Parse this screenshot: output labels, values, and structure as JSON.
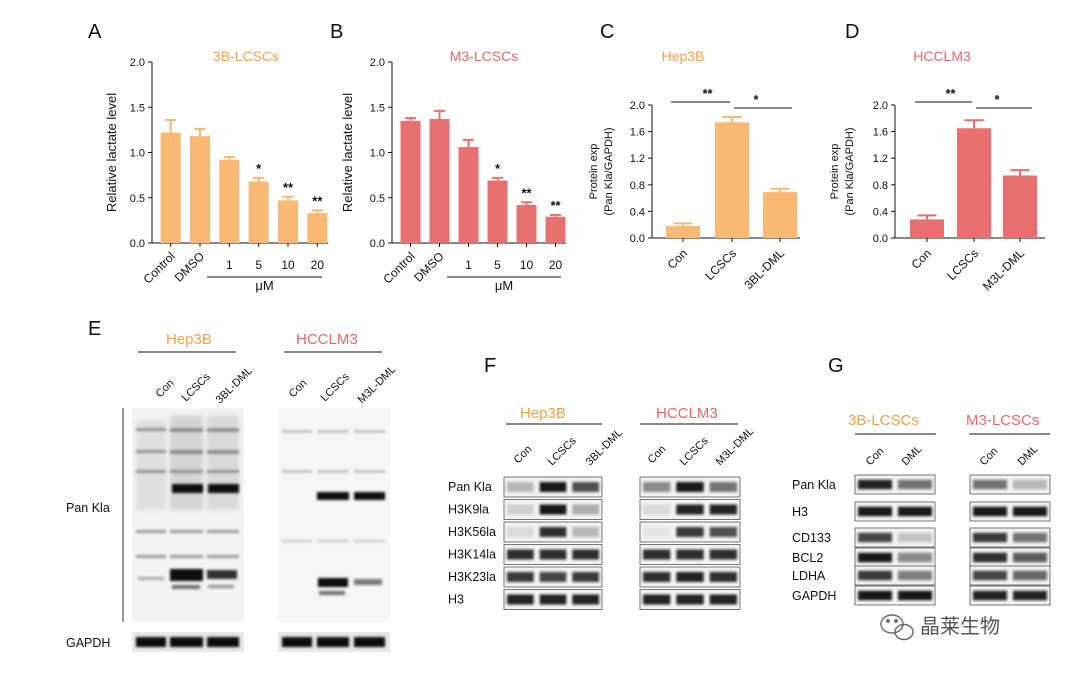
{
  "colors": {
    "orange": "#F9B874",
    "red": "#E97070",
    "orange_title": "#F7A04E",
    "red_title": "#E66A6A"
  },
  "chart_data": [
    {
      "type": "bar",
      "letter": "A",
      "title": "3B-LCSCs",
      "color": "orange",
      "ylabel": "Relative  lactate level",
      "ylim": [
        0,
        2.0
      ],
      "yticks": [
        "0.0",
        "0.5",
        "1.0",
        "1.5",
        "2.0"
      ],
      "categories": [
        "Control",
        "DMSO",
        "1",
        "5",
        "10",
        "20"
      ],
      "values": [
        1.22,
        1.18,
        0.92,
        0.68,
        0.47,
        0.33
      ],
      "errors": [
        0.14,
        0.08,
        0.03,
        0.04,
        0.04,
        0.03
      ],
      "sig": [
        "",
        "",
        "",
        "*",
        "**",
        "**"
      ],
      "group_label": "μM"
    },
    {
      "type": "bar",
      "letter": "B",
      "title": "M3-LCSCs",
      "color": "red",
      "ylabel": "Relative  lactate level",
      "ylim": [
        0,
        2.0
      ],
      "yticks": [
        "0.0",
        "0.5",
        "1.0",
        "1.5",
        "2.0"
      ],
      "categories": [
        "Control",
        "DMSO",
        "1",
        "5",
        "10",
        "20"
      ],
      "values": [
        1.35,
        1.37,
        1.06,
        0.69,
        0.42,
        0.29
      ],
      "errors": [
        0.03,
        0.09,
        0.08,
        0.03,
        0.03,
        0.02
      ],
      "sig": [
        "",
        "",
        "",
        "*",
        "**",
        "**"
      ],
      "group_label": "μM"
    },
    {
      "type": "bar",
      "letter": "C",
      "title": "Hep3B",
      "color": "orange",
      "ylabel": "Protein exp",
      "ylabel2": "(Pan Kla/GAPDH)",
      "ylim": [
        0,
        2.0
      ],
      "yticks": [
        "0.0",
        "0.4",
        "0.8",
        "1.2",
        "1.6",
        "2.0"
      ],
      "categories": [
        "Con",
        "LCSCs",
        "3BL-DML"
      ],
      "values": [
        0.18,
        1.74,
        0.69
      ],
      "errors": [
        0.04,
        0.08,
        0.05
      ],
      "comparisons": [
        {
          "from": 0,
          "to": 1,
          "label": "**"
        },
        {
          "from": 1,
          "to": 2,
          "label": "*"
        }
      ]
    },
    {
      "type": "bar",
      "letter": "D",
      "title": "HCCLM3",
      "color": "red",
      "ylabel": "Protein exp",
      "ylabel2": "(Pan Kla/GAPDH)",
      "ylim": [
        0,
        2.0
      ],
      "yticks": [
        "0.0",
        "0.4",
        "0.8",
        "1.2",
        "1.6",
        "2.0"
      ],
      "categories": [
        "Con",
        "LCSCs",
        "M3L-DML"
      ],
      "values": [
        0.28,
        1.65,
        0.94
      ],
      "errors": [
        0.06,
        0.12,
        0.08
      ],
      "comparisons": [
        {
          "from": 0,
          "to": 1,
          "label": "**"
        },
        {
          "from": 1,
          "to": 2,
          "label": "*"
        }
      ]
    }
  ],
  "blots": {
    "E": {
      "letter": "E",
      "groups": [
        "Hep3B",
        "HCCLM3"
      ],
      "lanes_left": [
        "Con",
        "LCSCs",
        "3BL-DML"
      ],
      "lanes_right": [
        "Con",
        "LCSCs",
        "M3L-DML"
      ],
      "main_label": "Pan Kla",
      "control_label": "GAPDH"
    },
    "F": {
      "letter": "F",
      "groups": [
        "Hep3B",
        "HCCLM3"
      ],
      "lanes_left": [
        "Con",
        "LCSCs",
        "3BL-DML"
      ],
      "lanes_right": [
        "Con",
        "LCSCs",
        "M3L-DML"
      ],
      "rows": [
        "Pan Kla",
        "H3K9la",
        "H3K56la",
        "H3K14la",
        "H3K23la",
        "H3"
      ]
    },
    "G": {
      "letter": "G",
      "groups": [
        "3B-LCSCs",
        "M3-LCSCs"
      ],
      "lanes_left": [
        "Con",
        "DML"
      ],
      "lanes_right": [
        "Con",
        "DML"
      ],
      "rows": [
        "Pan Kla",
        "H3",
        "CD133",
        "BCL2",
        "LDHA",
        "GAPDH"
      ]
    }
  },
  "watermark": "晶莱生物"
}
